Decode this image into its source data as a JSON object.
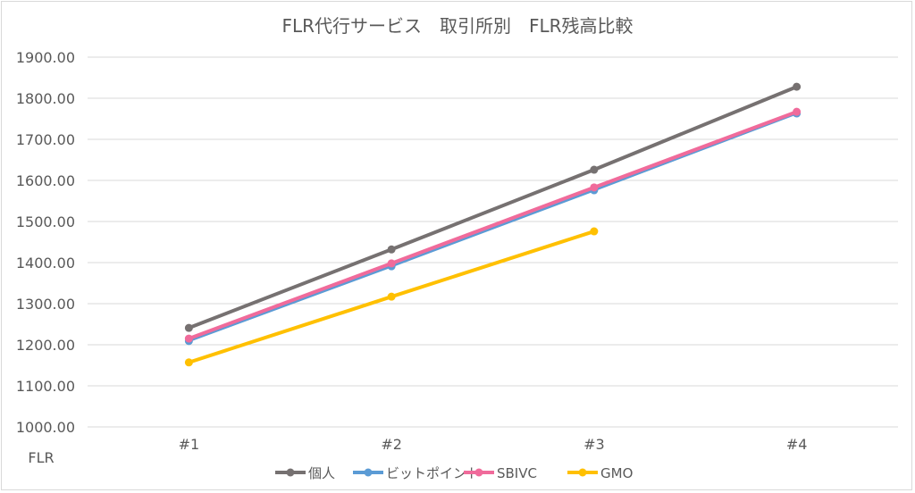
{
  "chart_data": {
    "type": "line",
    "title": "FLR代行サービス　取引所別　FLR残高比較",
    "ylabel": "FLR",
    "xlabel": "",
    "categories": [
      "#1",
      "#2",
      "#3",
      "#4"
    ],
    "ylim": [
      1000,
      1900
    ],
    "yticks": [
      "1000.00",
      "1100.00",
      "1200.00",
      "1300.00",
      "1400.00",
      "1500.00",
      "1600.00",
      "1700.00",
      "1800.00",
      "1900.00"
    ],
    "grid": true,
    "legend": "bottom",
    "series": [
      {
        "name": "個人",
        "color": "#767171",
        "values": [
          1241,
          1432,
          1626,
          1828
        ]
      },
      {
        "name": "ビットポイント",
        "color": "#5b9bd5",
        "values": [
          1209,
          1391,
          1576,
          1763
        ]
      },
      {
        "name": "SBIVC",
        "color": "#f06b9b",
        "values": [
          1215,
          1398,
          1583,
          1767
        ]
      },
      {
        "name": "GMO",
        "color": "#ffc000",
        "values": [
          1157,
          1317,
          1476,
          null
        ]
      }
    ]
  }
}
